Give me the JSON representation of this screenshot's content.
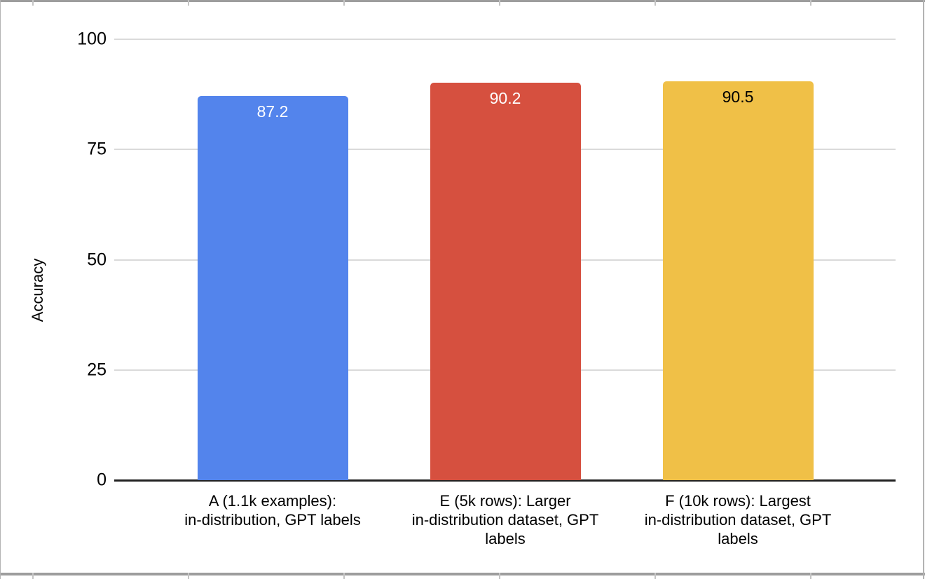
{
  "frame": {
    "border_color": "#9D9D9D",
    "side_border_color": "#B3B3B3",
    "tick_color": "#C4C4C4",
    "column_tick_x": [
      46,
      268,
      490,
      712,
      934,
      1156
    ]
  },
  "chart_data": {
    "type": "bar",
    "title": "",
    "ylabel": "Accuracy",
    "xlabel": "",
    "ylim": [
      0,
      100
    ],
    "yticks": [
      0,
      25,
      50,
      75,
      100
    ],
    "grid": true,
    "legend": "none",
    "categories": [
      "A (1.1k examples):\nin-distribution, GPT labels",
      "E (5k rows): Larger\nin-distribution dataset, GPT\nlabels",
      "F (10k rows): Largest\nin-distribution dataset, GPT\nlabels"
    ],
    "values": [
      87.2,
      90.2,
      90.5
    ],
    "value_labels": [
      "87.2",
      "90.2",
      "90.5"
    ],
    "bar_colors": [
      "#5384EC",
      "#D6503F",
      "#F0C047"
    ],
    "value_label_colors": [
      "#FFFFFF",
      "#FFFFFF",
      "#000000"
    ],
    "gridline_color": "#DADADA",
    "axis_line_color": "#212121",
    "text_color": "#000000"
  }
}
